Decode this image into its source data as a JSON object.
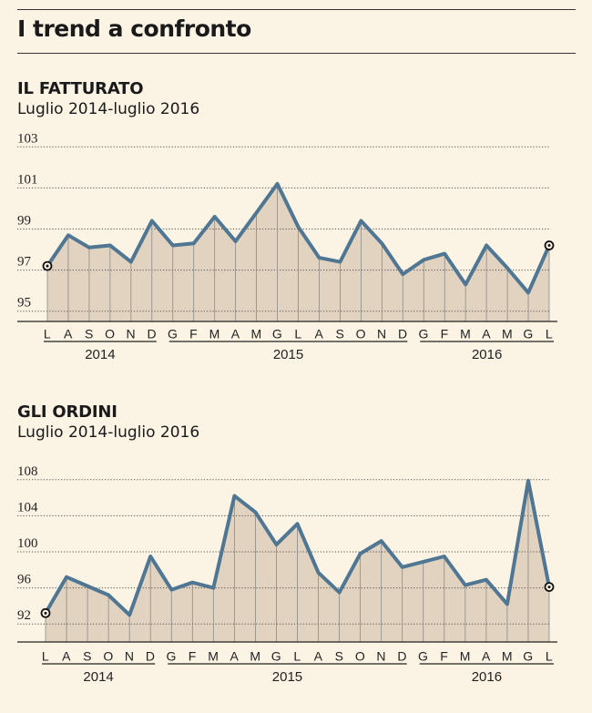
{
  "title": "I trend a confronto",
  "style": {
    "line_color": "#4f7693",
    "fill_color": "#e1d3c0",
    "background": "#fbf3e4"
  },
  "x_labels": [
    "L",
    "A",
    "S",
    "O",
    "N",
    "D",
    "G",
    "F",
    "M",
    "A",
    "M",
    "G",
    "L",
    "A",
    "S",
    "O",
    "N",
    "D",
    "G",
    "F",
    "M",
    "A",
    "M",
    "G",
    "L"
  ],
  "years": [
    {
      "label": "2014",
      "start": 0,
      "end": 5
    },
    {
      "label": "2015",
      "start": 6,
      "end": 17
    },
    {
      "label": "2016",
      "start": 18,
      "end": 24
    }
  ],
  "chart_data": [
    {
      "type": "area",
      "title": "IL FATTURATO",
      "subtitle": "Luglio 2014-luglio 2016",
      "yticks": [
        95,
        97,
        99,
        101,
        103
      ],
      "ylim": [
        94.5,
        103.5
      ],
      "values": [
        97.2,
        98.7,
        98.1,
        98.2,
        97.4,
        99.4,
        98.2,
        98.3,
        99.6,
        98.4,
        99.8,
        101.2,
        99.1,
        97.6,
        97.4,
        99.4,
        98.3,
        96.8,
        97.5,
        97.8,
        96.3,
        98.2,
        97.1,
        95.9,
        98.2
      ],
      "markers": [
        0,
        24
      ]
    },
    {
      "type": "area",
      "title": "GLI ORDINI",
      "subtitle": "Luglio 2014-luglio 2016",
      "yticks": [
        92,
        96,
        100,
        104,
        108
      ],
      "ylim": [
        90,
        110
      ],
      "values": [
        93.2,
        97.2,
        96.2,
        95.2,
        93.0,
        99.5,
        95.8,
        96.6,
        96.0,
        106.2,
        104.4,
        100.8,
        103.1,
        97.7,
        95.5,
        99.8,
        101.2,
        98.3,
        98.9,
        99.5,
        96.3,
        96.9,
        94.2,
        107.9,
        96.1
      ],
      "markers": [
        0,
        24
      ]
    }
  ]
}
